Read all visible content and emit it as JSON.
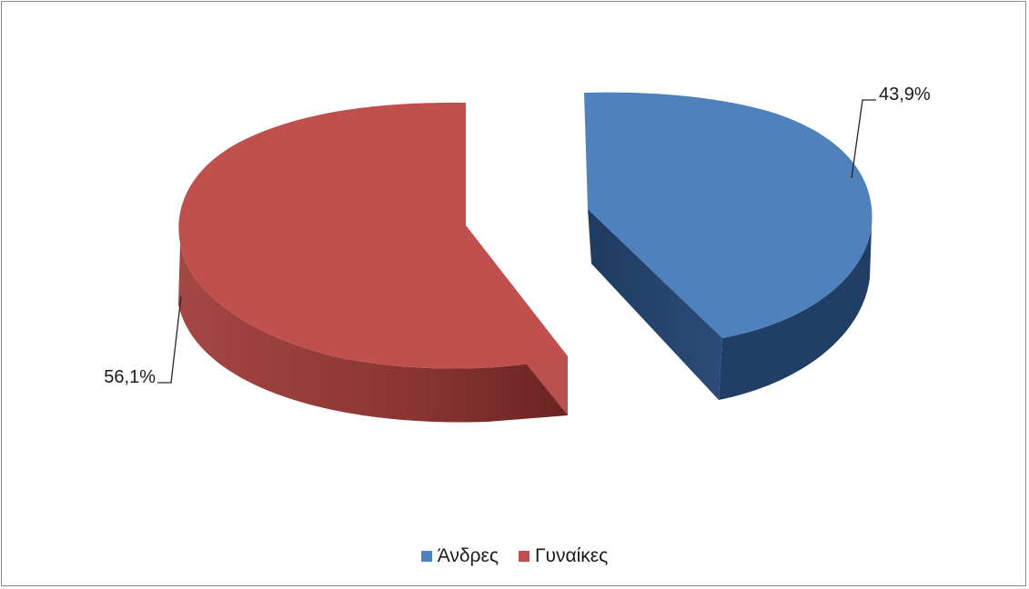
{
  "chart_data": {
    "type": "pie",
    "title": "",
    "legend_position": "bottom",
    "slices": [
      {
        "name": "Άνδρες",
        "value": 43.9,
        "label": "43,9%",
        "color": "#4f81bd",
        "side_color": "#233f66"
      },
      {
        "name": "Γυναίκες",
        "value": 56.1,
        "label": "56,1%",
        "color": "#c0504d",
        "side_color": "#7b2a28"
      }
    ]
  }
}
